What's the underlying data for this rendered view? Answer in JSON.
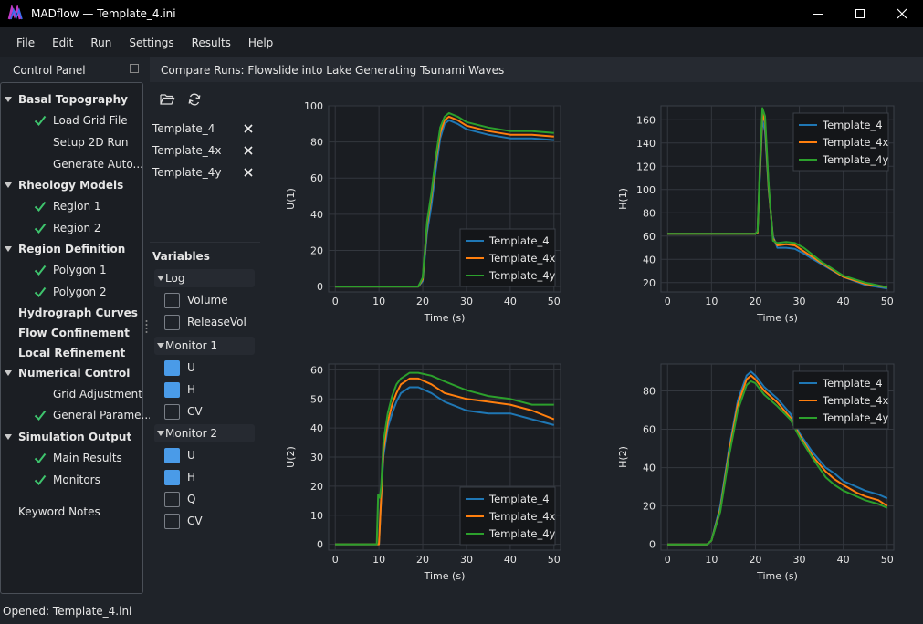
{
  "window": {
    "title": "MADflow — Template_4.ini",
    "minimize_glyph": "—",
    "maximize_glyph": "☐",
    "close_glyph": "✕"
  },
  "menu": [
    "File",
    "Edit",
    "Run",
    "Settings",
    "Results",
    "Help"
  ],
  "control_panel": {
    "title": "Control Panel",
    "tree": [
      {
        "label": "Basal Topography",
        "level": 0,
        "expanded": true,
        "checked": false
      },
      {
        "label": "Load Grid File",
        "level": 1,
        "checked": true
      },
      {
        "label": "Setup 2D Run",
        "level": 1,
        "checked": false
      },
      {
        "label": "Generate Auto...",
        "level": 1,
        "checked": false
      },
      {
        "label": "Rheology Models",
        "level": 0,
        "expanded": true,
        "checked": false
      },
      {
        "label": "Region 1",
        "level": 1,
        "checked": true
      },
      {
        "label": "Region 2",
        "level": 1,
        "checked": true
      },
      {
        "label": "Region Definition",
        "level": 0,
        "expanded": true,
        "checked": false
      },
      {
        "label": "Polygon 1",
        "level": 1,
        "checked": true
      },
      {
        "label": "Polygon 2",
        "level": 1,
        "checked": true
      },
      {
        "label": "Hydrograph Curves",
        "level": 0,
        "expanded": false,
        "checked": false
      },
      {
        "label": "Flow Confinement",
        "level": 0,
        "expanded": false,
        "checked": false
      },
      {
        "label": "Local Refinement",
        "level": 0,
        "expanded": false,
        "checked": false
      },
      {
        "label": "Numerical Control",
        "level": 0,
        "expanded": true,
        "checked": false
      },
      {
        "label": "Grid Adjustment",
        "level": 1,
        "checked": false
      },
      {
        "label": "General Parame...",
        "level": 1,
        "checked": true
      },
      {
        "label": "Simulation Output",
        "level": 0,
        "expanded": true,
        "checked": false
      },
      {
        "label": "Main Results",
        "level": 1,
        "checked": true
      },
      {
        "label": "Monitors",
        "level": 1,
        "checked": true
      },
      {
        "label": "Keyword Notes",
        "level": 0,
        "expanded": false,
        "checked": false,
        "plain": true
      }
    ]
  },
  "compare": {
    "title": "Compare Runs: Flowslide into Lake Generating Tsunami Waves",
    "toolbar": {
      "open_icon": "folder-open-icon",
      "refresh_icon": "refresh-icon"
    },
    "runs": [
      "Template_4",
      "Template_4x",
      "Template_4y"
    ],
    "variables_title": "Variables",
    "groups": [
      {
        "name": "Log",
        "vars": [
          {
            "label": "Volume",
            "checked": false
          },
          {
            "label": "ReleaseVol",
            "checked": false
          }
        ]
      },
      {
        "name": "Monitor 1",
        "vars": [
          {
            "label": "U",
            "checked": true
          },
          {
            "label": "H",
            "checked": true
          },
          {
            "label": "CV",
            "checked": false
          }
        ]
      },
      {
        "name": "Monitor 2",
        "vars": [
          {
            "label": "U",
            "checked": true
          },
          {
            "label": "H",
            "checked": true
          },
          {
            "label": "Q",
            "checked": false
          },
          {
            "label": "CV",
            "checked": false
          }
        ]
      }
    ]
  },
  "colors": {
    "series": [
      "#1f77b4",
      "#ff7f0e",
      "#2ca02c"
    ],
    "accent": "#4a9be8",
    "check": "#3ec46d"
  },
  "status": "Opened: Template_4.ini",
  "chart_data": [
    {
      "type": "line",
      "ylabel": "U(1)",
      "xlabel": "Time (s)",
      "xlim": [
        -1.5,
        51.5
      ],
      "ylim": [
        -3,
        100
      ],
      "xticks": [
        0,
        10,
        20,
        30,
        40,
        50
      ],
      "yticks": [
        0,
        20,
        40,
        60,
        80,
        100
      ],
      "grid": true,
      "legend": "bottom-right",
      "series": [
        {
          "name": "Template_4",
          "x": [
            0,
            19,
            20,
            21,
            22,
            23,
            24,
            25,
            26,
            28,
            30,
            35,
            40,
            45,
            50
          ],
          "y": [
            0,
            0,
            3,
            30,
            45,
            65,
            82,
            90,
            92,
            90,
            87,
            84,
            82,
            82,
            81
          ]
        },
        {
          "name": "Template_4x",
          "x": [
            0,
            19,
            20,
            21,
            22,
            23,
            24,
            25,
            26,
            28,
            30,
            35,
            40,
            45,
            50
          ],
          "y": [
            0,
            0,
            4,
            34,
            50,
            70,
            85,
            92,
            94,
            92,
            89,
            86,
            84,
            84,
            83
          ]
        },
        {
          "name": "Template_4y",
          "x": [
            0,
            19,
            20,
            21,
            22,
            23,
            24,
            25,
            26,
            28,
            30,
            35,
            40,
            45,
            50
          ],
          "y": [
            0,
            0,
            5,
            36,
            52,
            72,
            88,
            94,
            96,
            94,
            91,
            88,
            86,
            86,
            85
          ]
        }
      ]
    },
    {
      "type": "line",
      "ylabel": "H(1)",
      "xlabel": "Time (s)",
      "xlim": [
        -1.5,
        51.5
      ],
      "ylim": [
        12,
        172
      ],
      "xticks": [
        0,
        10,
        20,
        30,
        40,
        50
      ],
      "yticks": [
        20,
        40,
        60,
        80,
        100,
        120,
        140,
        160
      ],
      "grid": true,
      "legend": "top-right",
      "series": [
        {
          "name": "Template_4",
          "x": [
            0,
            20,
            20.5,
            21,
            21.6,
            22.2,
            23,
            24,
            25,
            27,
            29,
            31,
            35,
            40,
            45,
            50
          ],
          "y": [
            62,
            62,
            63,
            110,
            160,
            150,
            100,
            60,
            50,
            50,
            49,
            45,
            36,
            25,
            18,
            15
          ]
        },
        {
          "name": "Template_4x",
          "x": [
            0,
            20,
            20.5,
            21,
            21.6,
            22.2,
            23,
            24,
            25,
            27,
            29,
            31,
            35,
            40,
            45,
            50
          ],
          "y": [
            62,
            62,
            63,
            115,
            165,
            158,
            102,
            58,
            52,
            53,
            52,
            47,
            37,
            25,
            19,
            16
          ]
        },
        {
          "name": "Template_4y",
          "x": [
            0,
            20,
            20.5,
            21,
            21.6,
            22.2,
            23,
            24,
            25,
            27,
            29,
            31,
            35,
            40,
            45,
            50
          ],
          "y": [
            62,
            62,
            64,
            120,
            170,
            163,
            105,
            56,
            54,
            55,
            54,
            50,
            38,
            26,
            20,
            16
          ]
        }
      ]
    },
    {
      "type": "line",
      "ylabel": "U(2)",
      "xlabel": "Time (s)",
      "xlim": [
        -1.5,
        51.5
      ],
      "ylim": [
        -2,
        62
      ],
      "xticks": [
        0,
        10,
        20,
        30,
        40,
        50
      ],
      "yticks": [
        0,
        10,
        20,
        30,
        40,
        50,
        60
      ],
      "grid": true,
      "legend": "bottom-right",
      "series": [
        {
          "name": "Template_4",
          "x": [
            0,
            10,
            10.3,
            11,
            12,
            13,
            14,
            15,
            17,
            19,
            22,
            25,
            30,
            35,
            40,
            45,
            50
          ],
          "y": [
            0,
            0,
            10,
            30,
            40,
            45,
            49,
            52,
            54,
            54,
            52,
            49,
            46,
            45,
            45,
            43,
            41
          ]
        },
        {
          "name": "Template_4x",
          "x": [
            0,
            10,
            10.3,
            11,
            12,
            13,
            14,
            15,
            17,
            19,
            22,
            25,
            30,
            35,
            40,
            45,
            50
          ],
          "y": [
            0,
            0,
            10,
            32,
            42,
            48,
            52,
            55,
            57,
            57,
            55,
            52,
            50,
            49,
            48,
            46,
            43
          ]
        },
        {
          "name": "Template_4y",
          "x": [
            0,
            9.5,
            9.8,
            10.2,
            10.5,
            11,
            12,
            13,
            14,
            15,
            17,
            19,
            22,
            25,
            30,
            35,
            40,
            45,
            50
          ],
          "y": [
            0,
            0,
            17,
            16,
            20,
            35,
            45,
            51,
            55,
            57,
            59,
            59,
            58,
            56,
            53,
            51,
            50,
            48,
            48
          ]
        }
      ]
    },
    {
      "type": "line",
      "ylabel": "H(2)",
      "xlabel": "Time (s)",
      "xlim": [
        -1.5,
        51.5
      ],
      "ylim": [
        -3,
        94
      ],
      "xticks": [
        0,
        10,
        20,
        30,
        40,
        50
      ],
      "yticks": [
        0,
        20,
        40,
        60,
        80
      ],
      "grid": true,
      "legend": "top-right",
      "series": [
        {
          "name": "Template_4",
          "x": [
            0,
            9,
            10,
            12,
            14,
            16,
            18,
            19,
            20,
            22,
            25,
            28,
            30,
            33,
            36,
            38,
            40,
            43,
            45,
            48,
            50
          ],
          "y": [
            0,
            0,
            2,
            20,
            50,
            75,
            88,
            90,
            88,
            82,
            76,
            68,
            58,
            48,
            40,
            37,
            33,
            30,
            28,
            26,
            24
          ]
        },
        {
          "name": "Template_4x",
          "x": [
            0,
            9,
            10,
            12,
            14,
            16,
            18,
            19,
            20,
            22,
            25,
            28,
            30,
            33,
            36,
            38,
            40,
            43,
            45,
            48,
            50
          ],
          "y": [
            0,
            0,
            2,
            18,
            48,
            73,
            86,
            88,
            86,
            80,
            74,
            66,
            57,
            46,
            38,
            34,
            31,
            27,
            25,
            23,
            20
          ]
        },
        {
          "name": "Template_4y",
          "x": [
            0,
            9,
            10,
            12,
            14,
            16,
            18,
            19,
            20,
            22,
            25,
            28,
            30,
            33,
            36,
            38,
            40,
            43,
            45,
            48,
            50
          ],
          "y": [
            0,
            0,
            2,
            17,
            46,
            70,
            83,
            85,
            84,
            78,
            72,
            65,
            56,
            45,
            35,
            31,
            28,
            25,
            23,
            21,
            19
          ]
        }
      ]
    }
  ]
}
